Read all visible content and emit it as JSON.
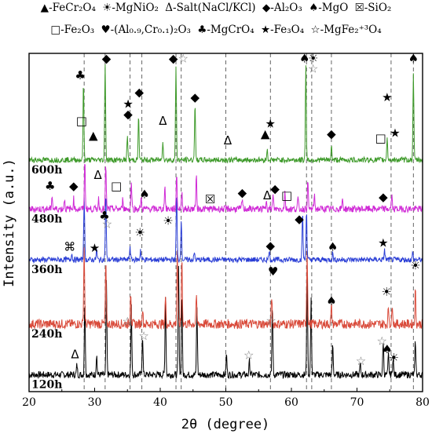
{
  "legend": {
    "row1": [
      {
        "symbol": "▲",
        "text": "-FeCr₂O₄"
      },
      {
        "symbol": "☀",
        "text": "-MgNiO₂"
      },
      {
        "symbol": "Δ",
        "text": "-Salt(NaCl/KCl)"
      },
      {
        "symbol": "◆",
        "text": "-Al₂O₃"
      },
      {
        "symbol": "♠",
        "text": "-MgO"
      },
      {
        "symbol": "☒",
        "text": "-SiO₂"
      }
    ],
    "row2": [
      {
        "symbol": "□",
        "text": "-Fe₂O₃"
      },
      {
        "symbol": "♥",
        "text": "-(Al₀.₉,Cr₀.₁)₂O₃"
      },
      {
        "symbol": "♣",
        "text": "-MgCrO₄"
      },
      {
        "symbol": "★",
        "text": "-Fe₃O₄"
      },
      {
        "symbol": "☆",
        "text": "-MgFe₂⁺³O₄"
      }
    ]
  },
  "chart_data": {
    "type": "line",
    "xlabel": "2θ (degree)",
    "ylabel": "Intensity  (a.u.)",
    "xlim": [
      20,
      80
    ],
    "xticks": [
      20,
      30,
      40,
      50,
      60,
      70,
      80
    ],
    "reference_lines_x": [
      28.4,
      31.6,
      35.4,
      37.2,
      42.4,
      43.2,
      50.0,
      56.8,
      62.3,
      63.1,
      66.1,
      75.2,
      78.6
    ],
    "series": [
      {
        "name": "120h",
        "color": "#000000",
        "baseline": 0.05,
        "noise": 0.01,
        "peaks": [
          [
            27.3,
            0.03
          ],
          [
            28.5,
            0.22
          ],
          [
            30.3,
            0.06
          ],
          [
            31.8,
            0.27
          ],
          [
            35.6,
            0.2
          ],
          [
            37.3,
            0.12
          ],
          [
            40.8,
            0.23
          ],
          [
            42.8,
            0.32
          ],
          [
            43.3,
            0.25
          ],
          [
            45.6,
            0.2
          ],
          [
            50.1,
            0.06
          ],
          [
            53.6,
            0.04
          ],
          [
            57.1,
            0.21
          ],
          [
            62.4,
            0.3
          ],
          [
            63.0,
            0.22
          ],
          [
            66.3,
            0.09
          ],
          [
            70.5,
            0.03
          ],
          [
            74.0,
            0.1
          ],
          [
            74.8,
            0.06
          ],
          [
            75.5,
            0.05
          ],
          [
            78.9,
            0.1
          ]
        ]
      },
      {
        "name": "240h",
        "color": "#d94a3a",
        "baseline": 0.2,
        "noise": 0.014,
        "peaks": [
          [
            28.4,
            0.23
          ],
          [
            31.7,
            0.18
          ],
          [
            35.5,
            0.1
          ],
          [
            37.3,
            0.05
          ],
          [
            40.8,
            0.08
          ],
          [
            42.6,
            0.22
          ],
          [
            43.3,
            0.2
          ],
          [
            45.5,
            0.08
          ],
          [
            57.0,
            0.08
          ],
          [
            62.4,
            0.22
          ],
          [
            66.1,
            0.05
          ],
          [
            74.8,
            0.05
          ],
          [
            75.4,
            0.06
          ],
          [
            78.9,
            0.1
          ]
        ]
      },
      {
        "name": "360h",
        "color": "#2b3fd6",
        "baseline": 0.39,
        "noise": 0.008,
        "peaks": [
          [
            26.5,
            0.02
          ],
          [
            28.4,
            0.19
          ],
          [
            30.3,
            0.03
          ],
          [
            31.7,
            0.2
          ],
          [
            35.4,
            0.04
          ],
          [
            37.0,
            0.03
          ],
          [
            42.5,
            0.2
          ],
          [
            43.2,
            0.12
          ],
          [
            45.2,
            0.02
          ],
          [
            56.6,
            0.03
          ],
          [
            61.7,
            0.14
          ],
          [
            62.3,
            0.15
          ],
          [
            66.3,
            0.02
          ],
          [
            74.2,
            0.03
          ],
          [
            78.5,
            0.02
          ]
        ]
      },
      {
        "name": "480h",
        "color": "#d02ad6",
        "baseline": 0.54,
        "noise": 0.01,
        "peaks": [
          [
            23.5,
            0.04
          ],
          [
            25.4,
            0.03
          ],
          [
            26.8,
            0.03
          ],
          [
            28.5,
            0.14
          ],
          [
            30.6,
            0.03
          ],
          [
            31.7,
            0.13
          ],
          [
            34.3,
            0.03
          ],
          [
            35.6,
            0.08
          ],
          [
            37.1,
            0.03
          ],
          [
            40.7,
            0.07
          ],
          [
            42.5,
            0.1
          ],
          [
            43.3,
            0.05
          ],
          [
            45.5,
            0.1
          ],
          [
            52.5,
            0.03
          ],
          [
            56.2,
            0.03
          ],
          [
            57.2,
            0.04
          ],
          [
            59.0,
            0.05
          ],
          [
            61.0,
            0.03
          ],
          [
            62.5,
            0.08
          ],
          [
            63.5,
            0.04
          ],
          [
            67.8,
            0.03
          ],
          [
            75.3,
            0.04
          ]
        ]
      },
      {
        "name": "600h",
        "color": "#3e9a2a",
        "baseline": 0.685,
        "noise": 0.008,
        "peaks": [
          [
            28.3,
            0.23
          ],
          [
            31.6,
            0.29
          ],
          [
            35.0,
            0.07
          ],
          [
            36.7,
            0.13
          ],
          [
            40.4,
            0.06
          ],
          [
            42.4,
            0.28
          ],
          [
            45.3,
            0.17
          ],
          [
            56.3,
            0.03
          ],
          [
            62.2,
            0.28
          ],
          [
            66.1,
            0.04
          ],
          [
            74.6,
            0.07
          ],
          [
            78.6,
            0.26
          ]
        ]
      }
    ],
    "markers": [
      {
        "series": "600h",
        "symbol": "♣",
        "x": 27.8,
        "y": 0.935
      },
      {
        "series": "600h",
        "symbol": "◆",
        "x": 31.8,
        "y": 0.985
      },
      {
        "series": "600h",
        "symbol": "◆",
        "x": 42.0,
        "y": 0.985
      },
      {
        "series": "600h",
        "symbol": "☆",
        "x": 43.5,
        "y": 0.985
      },
      {
        "series": "600h",
        "symbol": "♠",
        "x": 62.0,
        "y": 0.985
      },
      {
        "series": "600h",
        "symbol": "☀",
        "x": 63.3,
        "y": 0.985
      },
      {
        "series": "600h",
        "symbol": "☆",
        "x": 63.3,
        "y": 0.955
      },
      {
        "series": "600h",
        "symbol": "♠",
        "x": 78.6,
        "y": 0.985
      },
      {
        "series": "600h",
        "symbol": "◆",
        "x": 36.8,
        "y": 0.885
      },
      {
        "series": "600h",
        "symbol": "★",
        "x": 35.1,
        "y": 0.85
      },
      {
        "series": "600h",
        "symbol": "◆",
        "x": 35.1,
        "y": 0.82
      },
      {
        "series": "600h",
        "symbol": "◆",
        "x": 45.3,
        "y": 0.87
      },
      {
        "series": "600h",
        "symbol": "□",
        "x": 28.0,
        "y": 0.8
      },
      {
        "series": "600h",
        "symbol": "▲",
        "x": 29.8,
        "y": 0.758
      },
      {
        "series": "600h",
        "symbol": "Δ",
        "x": 40.4,
        "y": 0.8
      },
      {
        "series": "600h",
        "symbol": "Δ",
        "x": 50.3,
        "y": 0.742
      },
      {
        "series": "600h",
        "symbol": "▲",
        "x": 56.0,
        "y": 0.762
      },
      {
        "series": "600h",
        "symbol": "★",
        "x": 56.8,
        "y": 0.792
      },
      {
        "series": "600h",
        "symbol": "◆",
        "x": 66.1,
        "y": 0.762
      },
      {
        "series": "600h",
        "symbol": "□",
        "x": 73.6,
        "y": 0.75
      },
      {
        "series": "600h",
        "symbol": "★",
        "x": 74.6,
        "y": 0.87
      },
      {
        "series": "600h",
        "symbol": "★",
        "x": 75.8,
        "y": 0.765
      },
      {
        "series": "480h",
        "symbol": "♣",
        "x": 23.2,
        "y": 0.608
      },
      {
        "series": "480h",
        "symbol": "◆",
        "x": 26.8,
        "y": 0.608
      },
      {
        "series": "480h",
        "symbol": "Δ",
        "x": 30.5,
        "y": 0.64
      },
      {
        "series": "480h",
        "symbol": "□",
        "x": 33.3,
        "y": 0.608
      },
      {
        "series": "480h",
        "symbol": "♠",
        "x": 37.6,
        "y": 0.583
      },
      {
        "series": "480h",
        "symbol": "☒",
        "x": 47.6,
        "y": 0.568
      },
      {
        "series": "480h",
        "symbol": "◆",
        "x": 52.5,
        "y": 0.588
      },
      {
        "series": "480h",
        "symbol": "Δ",
        "x": 56.3,
        "y": 0.58
      },
      {
        "series": "480h",
        "symbol": "◆",
        "x": 57.5,
        "y": 0.6
      },
      {
        "series": "480h",
        "symbol": "□",
        "x": 59.3,
        "y": 0.58
      },
      {
        "series": "480h",
        "symbol": "◆",
        "x": 74.0,
        "y": 0.575
      },
      {
        "series": "360h",
        "symbol": "♣",
        "x": 31.5,
        "y": 0.52
      },
      {
        "series": "360h",
        "symbol": "☆",
        "x": 31.9,
        "y": 0.495
      },
      {
        "series": "360h",
        "symbol": "☀",
        "x": 36.9,
        "y": 0.47
      },
      {
        "series": "360h",
        "symbol": "☀",
        "x": 41.2,
        "y": 0.505
      },
      {
        "series": "360h",
        "symbol": "⌘",
        "x": 26.2,
        "y": 0.428
      },
      {
        "series": "360h",
        "symbol": "★",
        "x": 30.0,
        "y": 0.425
      },
      {
        "series": "360h",
        "symbol": "◆",
        "x": 56.8,
        "y": 0.432
      },
      {
        "series": "360h",
        "symbol": "◆",
        "x": 61.2,
        "y": 0.51
      },
      {
        "series": "360h",
        "symbol": "♠",
        "x": 66.3,
        "y": 0.428
      },
      {
        "series": "360h",
        "symbol": "★",
        "x": 74.0,
        "y": 0.44
      },
      {
        "series": "240h",
        "symbol": "♥",
        "x": 57.2,
        "y": 0.355
      },
      {
        "series": "240h",
        "symbol": "♠",
        "x": 66.1,
        "y": 0.268
      },
      {
        "series": "240h",
        "symbol": "☀",
        "x": 74.5,
        "y": 0.295
      },
      {
        "series": "240h",
        "symbol": "☀",
        "x": 78.9,
        "y": 0.372
      },
      {
        "series": "120h",
        "symbol": "☆",
        "x": 35.0,
        "y": 0.208
      },
      {
        "series": "120h",
        "symbol": "☆",
        "x": 37.5,
        "y": 0.165
      },
      {
        "series": "120h",
        "symbol": "☆",
        "x": 56.9,
        "y": 0.21
      },
      {
        "series": "120h",
        "symbol": "☆",
        "x": 53.5,
        "y": 0.108
      },
      {
        "series": "120h",
        "symbol": "Δ",
        "x": 27.0,
        "y": 0.11
      },
      {
        "series": "120h",
        "symbol": "☆",
        "x": 70.6,
        "y": 0.09
      },
      {
        "series": "120h",
        "symbol": "☆",
        "x": 73.8,
        "y": 0.15
      },
      {
        "series": "120h",
        "symbol": "♠",
        "x": 74.6,
        "y": 0.125
      },
      {
        "series": "120h",
        "symbol": "☀",
        "x": 75.6,
        "y": 0.1
      }
    ]
  }
}
